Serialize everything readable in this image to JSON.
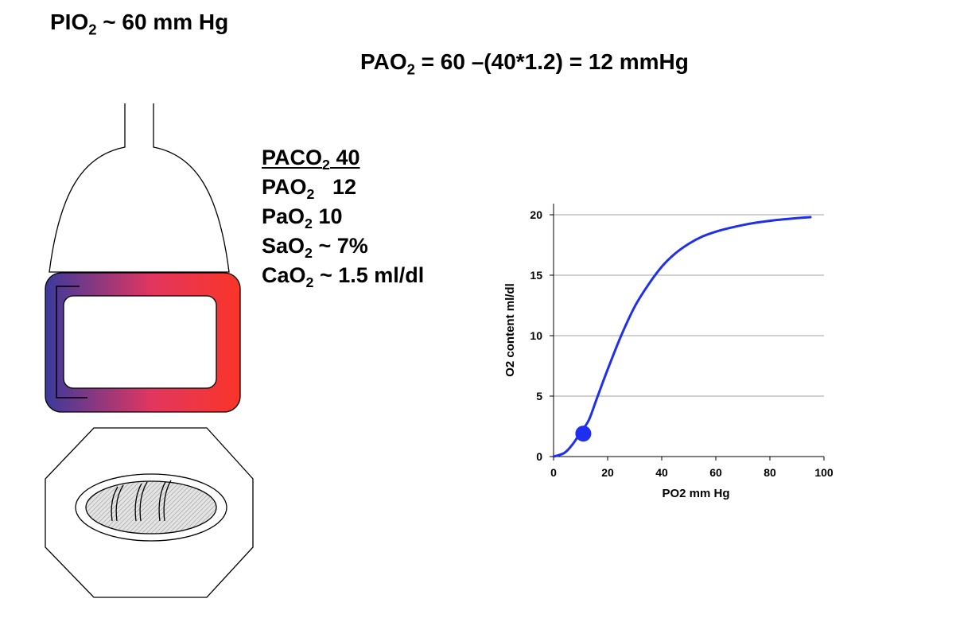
{
  "header": {
    "pio2": {
      "main": "PIO",
      "sub": "2",
      "rest": " ~ 60 mm Hg"
    },
    "pao2_equation": {
      "main": "PAO",
      "sub": "2",
      "rest": " = 60 –(40*1.2) = 12 mmHg"
    }
  },
  "values": [
    {
      "main": "PACO",
      "sub": "2",
      "rest": " 40"
    },
    {
      "main": "PAO",
      "sub": "2",
      "rest": "   12"
    },
    {
      "main": "PaO",
      "sub": "2",
      "rest": " 10"
    },
    {
      "main": "SaO",
      "sub": "2",
      "rest": " ~ 7%"
    },
    {
      "main": "CaO",
      "sub": "2",
      "rest": " ~ 1.5 ml/dl"
    }
  ],
  "colors": {
    "curve": "#1f2ff0",
    "capillary_venous": "#3b3a9c",
    "capillary_arterial": "#fa3528",
    "grid": "#a0a0a0",
    "tissue_hatch": "#9a9a9a"
  },
  "icons": {
    "alveolus": "alveolus-dome-icon",
    "capillary": "capillary-loop-icon",
    "tissue": "tissue-cell-icon"
  },
  "chart_data": {
    "type": "line",
    "title": "",
    "xlabel": "PO2 mm Hg",
    "ylabel": "O2 content ml/dl",
    "xlim": [
      0,
      100
    ],
    "ylim": [
      0,
      20
    ],
    "x_ticks": [
      0,
      20,
      40,
      60,
      80,
      100
    ],
    "y_ticks": [
      0,
      5,
      10,
      15,
      20
    ],
    "grid": "horizontal",
    "series": [
      {
        "x": [
          0,
          4,
          7,
          10,
          13,
          16,
          20,
          25,
          30,
          35,
          40,
          45,
          50,
          55,
          60,
          65,
          70,
          75,
          80,
          85,
          90,
          95
        ],
        "y": [
          0,
          0.3,
          1.0,
          2.0,
          3.0,
          4.8,
          7.2,
          10.0,
          12.4,
          14.2,
          15.7,
          16.8,
          17.6,
          18.2,
          18.6,
          18.9,
          19.15,
          19.35,
          19.5,
          19.62,
          19.72,
          19.8
        ]
      }
    ],
    "marker": {
      "x": 11,
      "y": 1.9
    }
  }
}
